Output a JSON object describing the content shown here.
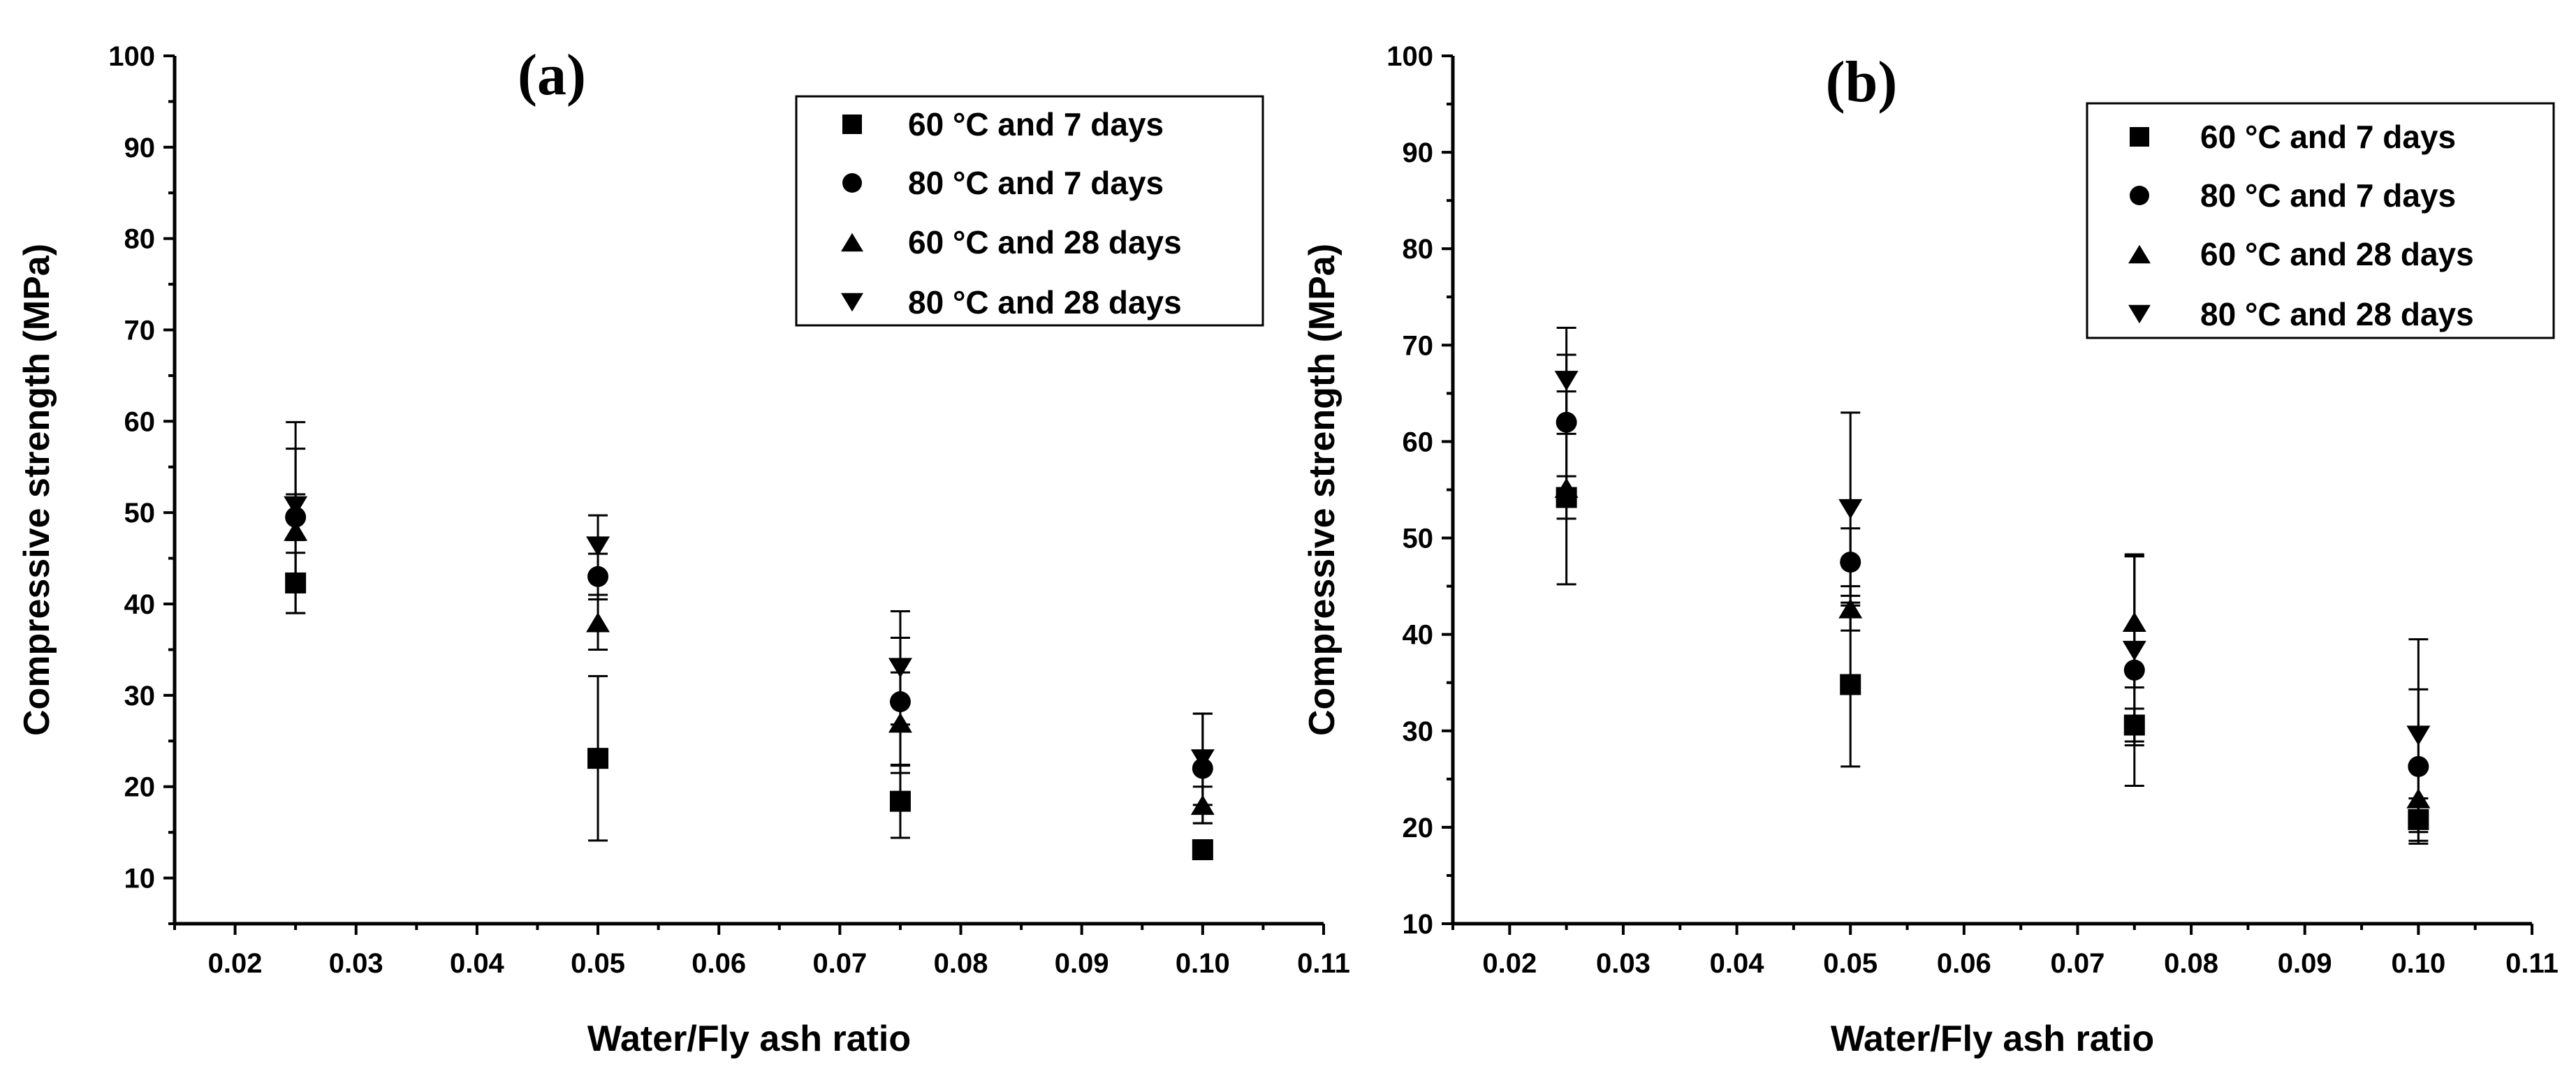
{
  "chart_data": [
    {
      "type": "scatter",
      "panel_label": "(a)",
      "xlabel": "Water/Fly ash ratio",
      "ylabel": "Compressive strength (MPa)",
      "xlim": [
        0.015,
        0.11
      ],
      "ylim": [
        5,
        100
      ],
      "xticks": [
        "0.02",
        "0.03",
        "0.04",
        "0.05",
        "0.06",
        "0.07",
        "0.08",
        "0.09",
        "0.10",
        "0.11"
      ],
      "yticks": [
        "10",
        "20",
        "30",
        "40",
        "50",
        "60",
        "70",
        "80",
        "90",
        "100"
      ],
      "legend_position": "top-right",
      "x": [
        0.025,
        0.05,
        0.075,
        0.1
      ],
      "series": [
        {
          "name": "60 °C and 7 days",
          "marker": "square",
          "values": [
            42.3,
            23.1,
            18.4,
            13.1
          ],
          "errors": [
            3.3,
            9.0,
            4.0,
            1.0
          ]
        },
        {
          "name": "80 °C and 7 days",
          "marker": "circle",
          "values": [
            49.5,
            43.0,
            29.3,
            22.0
          ],
          "errors": [
            2.5,
            2.5,
            7.0,
            6.0
          ]
        },
        {
          "name": "60 °C and 28 days",
          "marker": "triangle-up",
          "values": [
            48.0,
            38.0,
            27.0,
            18.0
          ],
          "errors": [
            9.0,
            3.0,
            5.5,
            2.0
          ]
        },
        {
          "name": "80 °C and 28 days",
          "marker": "triangle-down",
          "values": [
            50.7,
            46.3,
            33.0,
            23.0
          ],
          "errors": [
            9.2,
            3.4,
            6.2,
            5.0
          ]
        }
      ]
    },
    {
      "type": "scatter",
      "panel_label": "(b)",
      "xlabel": "Water/Fly ash ratio",
      "ylabel": "Compressive strength (MPa)",
      "xlim": [
        0.015,
        0.11
      ],
      "ylim": [
        10,
        100
      ],
      "xticks": [
        "0.02",
        "0.03",
        "0.04",
        "0.05",
        "0.06",
        "0.07",
        "0.08",
        "0.09",
        "0.10",
        "0.11"
      ],
      "yticks": [
        "10",
        "20",
        "30",
        "40",
        "50",
        "60",
        "70",
        "80",
        "90",
        "100"
      ],
      "legend_position": "top-right",
      "x": [
        0.025,
        0.05,
        0.075,
        0.1
      ],
      "series": [
        {
          "name": "60 °C and 7 days",
          "marker": "square",
          "values": [
            54.2,
            34.8,
            30.6,
            20.8
          ],
          "errors": [
            2.2,
            8.5,
            1.7,
            2.2
          ]
        },
        {
          "name": "80 °C and 7 days",
          "marker": "circle",
          "values": [
            62.0,
            47.5,
            36.3,
            26.3
          ],
          "errors": [
            7.0,
            3.5,
            12.0,
            8.0
          ]
        },
        {
          "name": "60 °C and 28 days",
          "marker": "triangle-up",
          "values": [
            55.2,
            42.7,
            41.3,
            23.0
          ],
          "errors": [
            10.0,
            2.3,
            6.8,
            3.0
          ]
        },
        {
          "name": "80 °C and 28 days",
          "marker": "triangle-down",
          "values": [
            66.3,
            53.0,
            38.3,
            29.5
          ],
          "errors": [
            5.5,
            10.0,
            9.8,
            10.0
          ]
        }
      ]
    }
  ]
}
